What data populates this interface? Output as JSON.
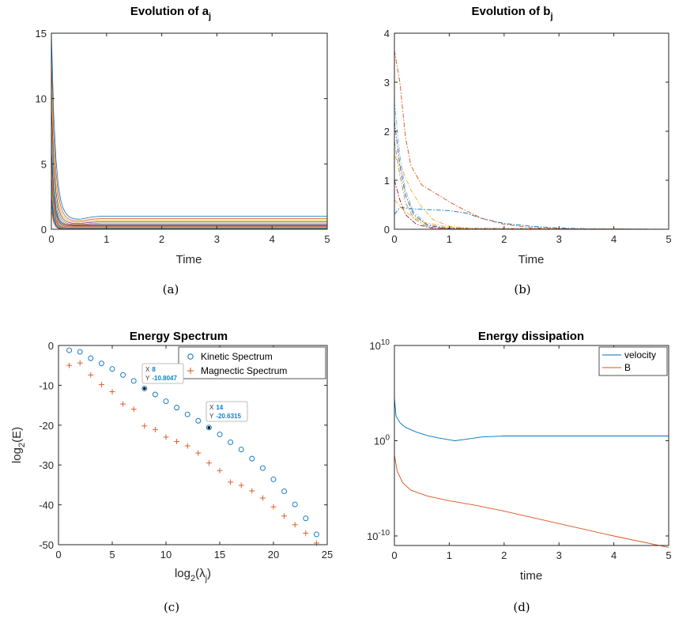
{
  "chart_data": [
    {
      "type": "line",
      "title": "Evolution of a",
      "title_sub": "j",
      "xlabel": "Time",
      "ylabel": "",
      "xlim": [
        0,
        5
      ],
      "ylim": [
        0,
        15
      ],
      "xticks": [
        0,
        1,
        2,
        3,
        4,
        5
      ],
      "yticks": [
        0,
        5,
        10,
        15
      ],
      "series_count": 16,
      "series_steady_values": [
        1.0,
        0.82,
        0.7,
        0.58,
        0.48,
        0.4,
        0.32,
        0.26,
        0.2,
        0.15,
        0.11,
        0.08,
        0.05,
        0.03,
        0.02,
        0.01
      ],
      "series_initial_values": [
        15,
        13,
        11,
        9.5,
        8,
        7,
        6,
        5.5,
        5,
        4.5,
        4,
        3.5,
        3,
        2.5,
        2,
        1.5
      ],
      "caption": "(a)"
    },
    {
      "type": "line",
      "title": "Evolution of b",
      "title_sub": "j",
      "xlabel": "Time",
      "ylabel": "",
      "xlim": [
        0,
        5
      ],
      "ylim": [
        0,
        4
      ],
      "xticks": [
        0,
        1,
        2,
        3,
        4,
        5
      ],
      "yticks": [
        0,
        1,
        2,
        3,
        4
      ],
      "series": [
        {
          "color": "#0072BD",
          "style": "dash-dot",
          "points": [
            [
              0,
              0.3
            ],
            [
              0.1,
              0.45
            ],
            [
              0.3,
              0.42
            ],
            [
              0.6,
              0.4
            ],
            [
              1.0,
              0.38
            ],
            [
              1.3,
              0.33
            ],
            [
              1.6,
              0.22
            ],
            [
              2.0,
              0.12
            ],
            [
              2.5,
              0.06
            ],
            [
              3.0,
              0.025
            ],
            [
              3.5,
              0.012
            ],
            [
              4,
              0.005
            ],
            [
              5,
              0.002
            ]
          ]
        },
        {
          "color": "#D95319",
          "style": "dash-dot",
          "points": [
            [
              0,
              3.65
            ],
            [
              0.1,
              3.0
            ],
            [
              0.2,
              1.9
            ],
            [
              0.3,
              1.3
            ],
            [
              0.5,
              0.9
            ],
            [
              0.8,
              0.7
            ],
            [
              1.0,
              0.56
            ],
            [
              1.3,
              0.38
            ],
            [
              1.6,
              0.22
            ],
            [
              2.0,
              0.1
            ],
            [
              2.5,
              0.03
            ],
            [
              3,
              0.01
            ],
            [
              5,
              0
            ]
          ]
        },
        {
          "color": "#EDB120",
          "style": "dash-dot",
          "points": [
            [
              0,
              1.5
            ],
            [
              0.15,
              1.2
            ],
            [
              0.3,
              0.8
            ],
            [
              0.5,
              0.45
            ],
            [
              0.7,
              0.2
            ],
            [
              1,
              0.06
            ],
            [
              1.5,
              0.01
            ],
            [
              5,
              0
            ]
          ]
        },
        {
          "color": "#7E2F8E",
          "style": "dash-dot",
          "points": [
            [
              0,
              2.2
            ],
            [
              0.1,
              1.3
            ],
            [
              0.2,
              0.7
            ],
            [
              0.35,
              0.3
            ],
            [
              0.6,
              0.08
            ],
            [
              1,
              0.01
            ],
            [
              5,
              0
            ]
          ]
        },
        {
          "color": "#77AC30",
          "style": "dash-dot",
          "points": [
            [
              0,
              1.8
            ],
            [
              0.1,
              1.1
            ],
            [
              0.2,
              0.55
            ],
            [
              0.35,
              0.22
            ],
            [
              0.6,
              0.05
            ],
            [
              1,
              0.005
            ],
            [
              5,
              0
            ]
          ]
        },
        {
          "color": "#4DBEEE",
          "style": "dash-dot",
          "points": [
            [
              0,
              2.6
            ],
            [
              0.1,
              1.5
            ],
            [
              0.2,
              0.8
            ],
            [
              0.35,
              0.35
            ],
            [
              0.6,
              0.1
            ],
            [
              1,
              0.02
            ],
            [
              5,
              0
            ]
          ]
        },
        {
          "color": "#A2142F",
          "style": "dash-dot",
          "points": [
            [
              0,
              1.0
            ],
            [
              0.1,
              0.6
            ],
            [
              0.2,
              0.3
            ],
            [
              0.4,
              0.1
            ],
            [
              0.7,
              0.02
            ],
            [
              5,
              0
            ]
          ]
        },
        {
          "color": "#EDB120",
          "style": "dash-dot",
          "points": [
            [
              0,
              0.6
            ],
            [
              0.2,
              0.35
            ],
            [
              0.5,
              0.15
            ],
            [
              1.0,
              0.04
            ],
            [
              1.5,
              0.01
            ],
            [
              5,
              0
            ]
          ]
        }
      ],
      "caption": "(b)"
    },
    {
      "type": "scatter",
      "title": "Energy Spectrum",
      "xlabel": "log",
      "xlabel_sub": "2",
      "xlabel_tail": "(λ",
      "xlabel_sub2": "j",
      "xlabel_end": ")",
      "ylabel": "log",
      "ylabel_sub": "2",
      "ylabel_tail": "(E)",
      "xlim": [
        0,
        25
      ],
      "ylim": [
        -50,
        0
      ],
      "xticks": [
        0,
        5,
        10,
        15,
        20,
        25
      ],
      "yticks": [
        0,
        -10,
        -20,
        -30,
        -40,
        -50
      ],
      "series": [
        {
          "name": "Kinetic Spectrum",
          "marker": "circle",
          "color": "#0072BD",
          "x": [
            1,
            2,
            3,
            4,
            5,
            6,
            7,
            8,
            9,
            10,
            11,
            12,
            13,
            14,
            15,
            16,
            17,
            18,
            19,
            20,
            21,
            22,
            23,
            24
          ],
          "y": [
            -1.2,
            -1.6,
            -3.2,
            -4.5,
            -5.9,
            -7.4,
            -8.9,
            -10.8,
            -12.3,
            -14.0,
            -15.6,
            -17.3,
            -18.9,
            -20.6,
            -22.3,
            -24.3,
            -26.1,
            -28.4,
            -30.8,
            -33.6,
            -36.6,
            -39.9,
            -43.4,
            -47.4
          ]
        },
        {
          "name": "Magnectic Spectrum",
          "marker": "plus",
          "color": "#D95319",
          "x": [
            1,
            2,
            3,
            4,
            5,
            6,
            7,
            8,
            9,
            10,
            11,
            12,
            13,
            14,
            15,
            16,
            17,
            18,
            19,
            20,
            21,
            22,
            23,
            24
          ],
          "y": [
            -5.0,
            -4.4,
            -7.4,
            -9.8,
            -11.6,
            -14.7,
            -16.0,
            -20.2,
            -21.1,
            -23.0,
            -24.1,
            -25.2,
            -27.0,
            -29.5,
            -31.4,
            -34.3,
            -35.1,
            -36.5,
            -38.3,
            -40.5,
            -42.8,
            -45.0,
            -47.1,
            -49.6
          ]
        }
      ],
      "datatips": [
        {
          "x_label": "X",
          "x_value": "8",
          "y_label": "Y",
          "y_value": "-10.8047",
          "x": 8,
          "y": -10.8047
        },
        {
          "x_label": "X",
          "x_value": "14",
          "y_label": "Y",
          "y_value": "-20.6315",
          "x": 14,
          "y": -20.6315
        }
      ],
      "legend": "top-right",
      "caption": "(c)"
    },
    {
      "type": "line",
      "title": "Energy dissipation",
      "xlabel": "time",
      "ylabel": "",
      "xlim": [
        0,
        5
      ],
      "ylog_lim": [
        -11,
        10
      ],
      "yscale": "log",
      "xticks": [
        0,
        1,
        2,
        3,
        4,
        5
      ],
      "yticks": [
        {
          "base": "10",
          "exp": "10",
          "log": 10
        },
        {
          "base": "10",
          "exp": "0",
          "log": 0
        },
        {
          "base": "10",
          "exp": "-10",
          "log": -10
        }
      ],
      "series": [
        {
          "name": "velocity",
          "color": "#0072BD",
          "log10_points": [
            [
              0,
              4.5
            ],
            [
              0.03,
              2.6
            ],
            [
              0.1,
              1.9
            ],
            [
              0.2,
              1.4
            ],
            [
              0.4,
              0.9
            ],
            [
              0.6,
              0.55
            ],
            [
              0.8,
              0.3
            ],
            [
              1.0,
              0.1
            ],
            [
              1.1,
              0.0
            ],
            [
              1.3,
              0.15
            ],
            [
              1.6,
              0.4
            ],
            [
              2.0,
              0.5
            ],
            [
              3,
              0.5
            ],
            [
              4,
              0.5
            ],
            [
              5,
              0.5
            ]
          ]
        },
        {
          "name": "B",
          "color": "#D95319",
          "log10_points": [
            [
              0,
              -1.5
            ],
            [
              0.05,
              -3.2
            ],
            [
              0.15,
              -4.4
            ],
            [
              0.3,
              -5.2
            ],
            [
              0.6,
              -5.8
            ],
            [
              1.0,
              -6.3
            ],
            [
              1.5,
              -6.8
            ],
            [
              2.0,
              -7.4
            ],
            [
              3.0,
              -8.7
            ],
            [
              4.0,
              -10.0
            ],
            [
              5.0,
              -11.2
            ]
          ]
        }
      ],
      "legend": "top-right",
      "caption": "(d)"
    }
  ]
}
